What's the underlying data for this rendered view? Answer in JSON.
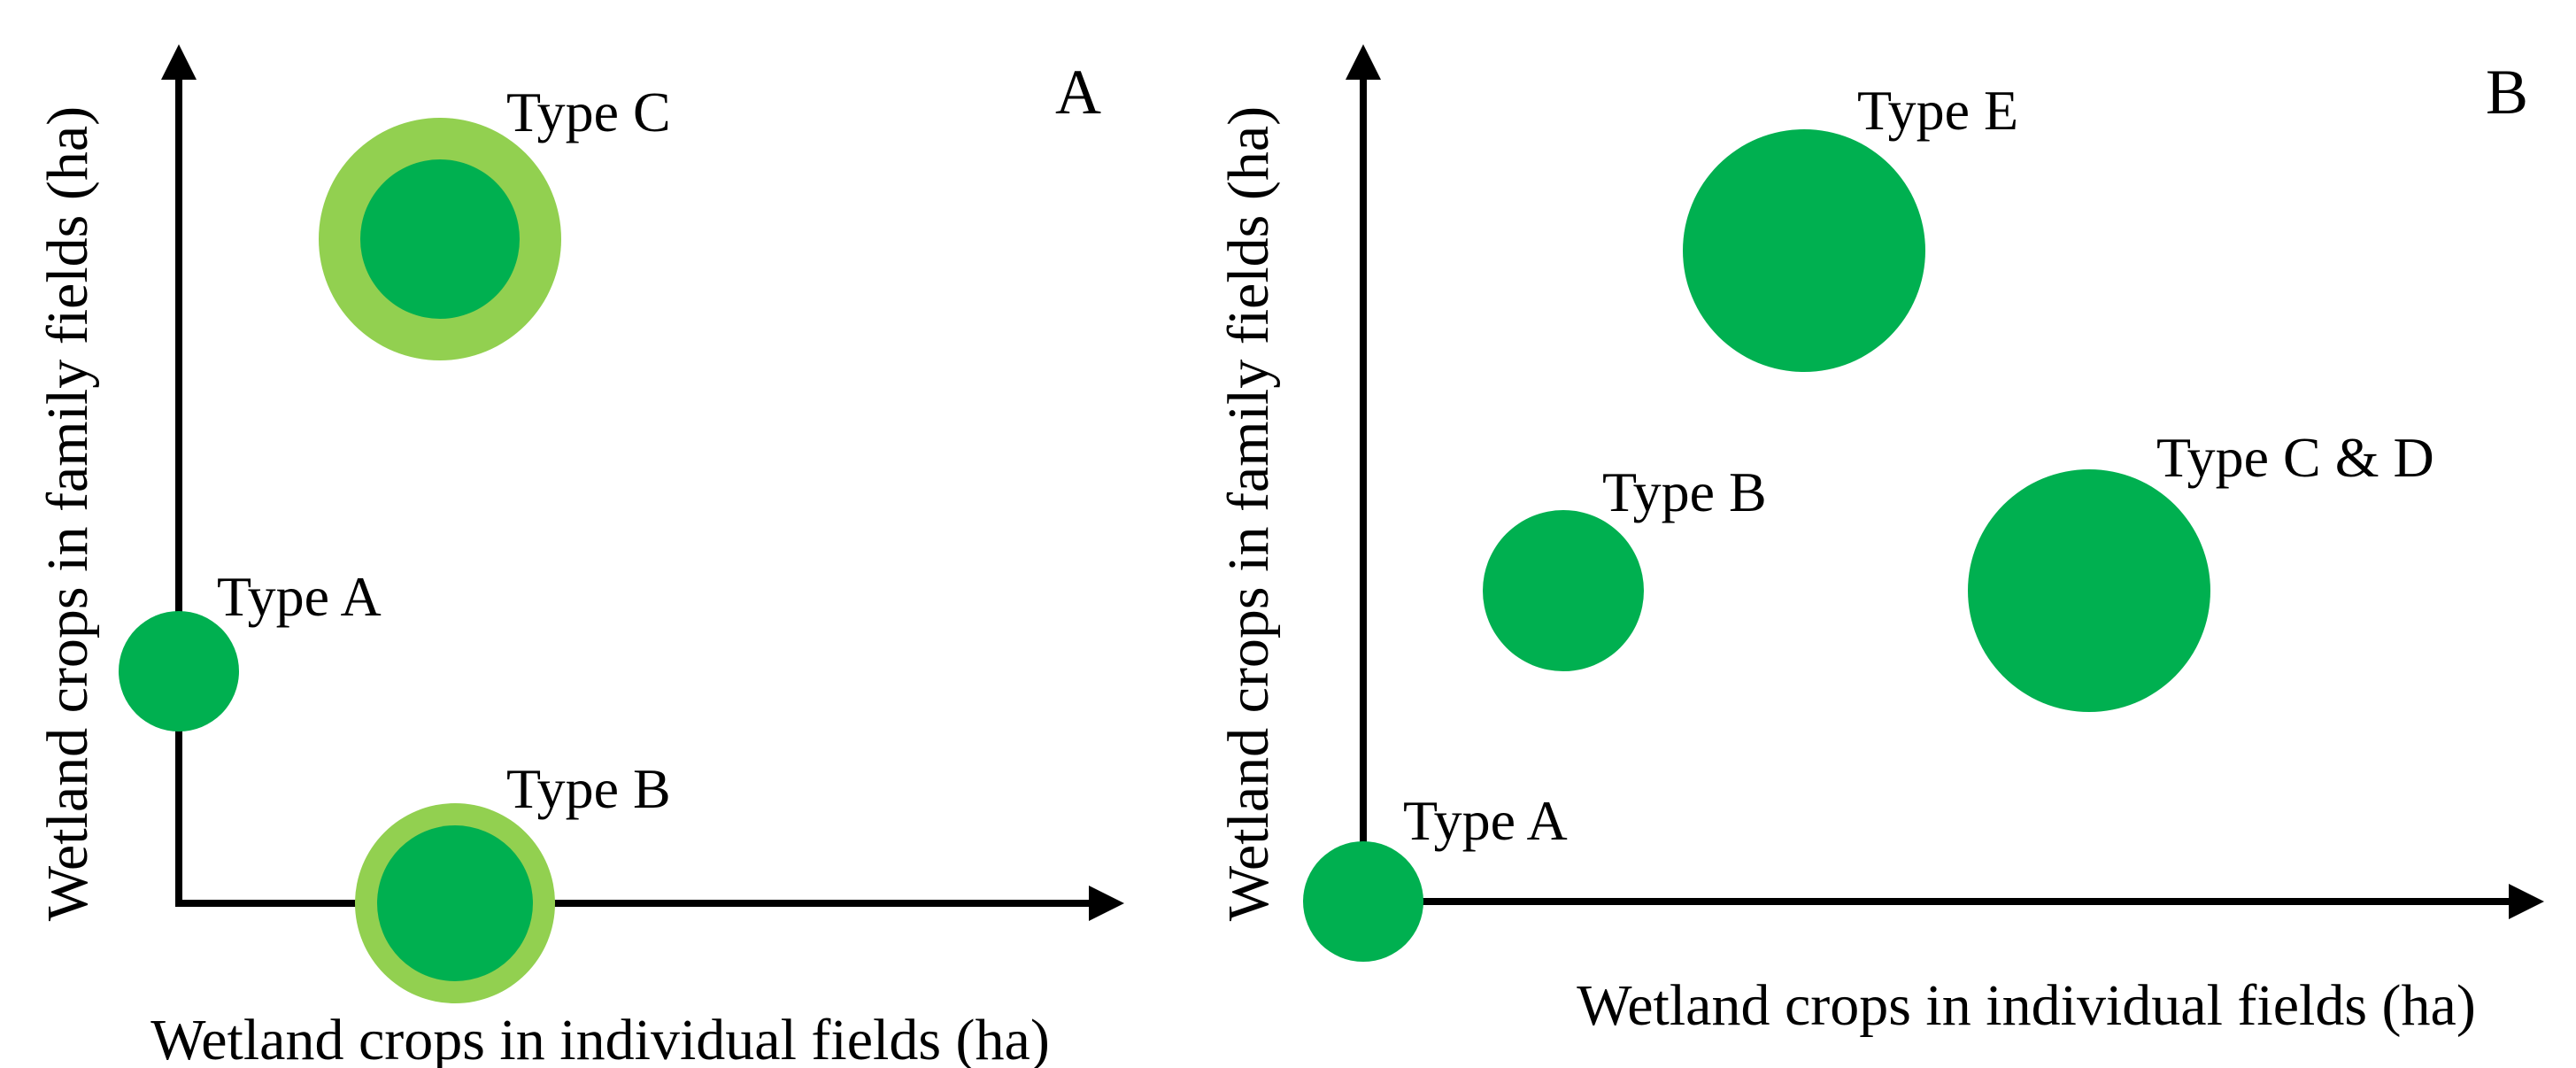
{
  "colors": {
    "inner_green": "#00b050",
    "outer_green": "#92d050",
    "axis": "#000000"
  },
  "panels": [
    {
      "label": "A",
      "x_axis_label": "Wetland crops in individual fields (ha)",
      "y_axis_label": "Wetland crops in family fields (ha)",
      "types": [
        {
          "label": "Type C",
          "ring": true
        },
        {
          "label": "Type A",
          "ring": false
        },
        {
          "label": "Type B",
          "ring": true
        }
      ]
    },
    {
      "label": "B",
      "x_axis_label": "Wetland crops in individual fields (ha)",
      "y_axis_label": "Wetland crops in family fields (ha)",
      "types": [
        {
          "label": "Type E",
          "ring": false
        },
        {
          "label": "Type B",
          "ring": false
        },
        {
          "label": "Type C & D",
          "ring": false
        },
        {
          "label": "Type A",
          "ring": false
        }
      ]
    }
  ]
}
